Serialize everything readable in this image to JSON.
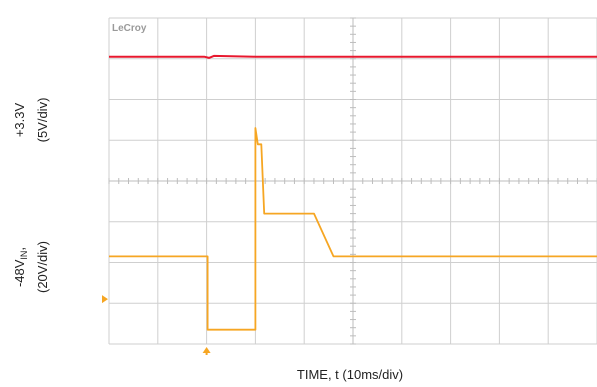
{
  "chart_data": {
    "type": "line",
    "instrument_logo": "LeCroy",
    "xlabel": "TIME, t (10ms/div)",
    "ylabels": {
      "top": [
        "+3.3V",
        "(5V/div)"
      ],
      "bottom_main": "-48V",
      "bottom_sub": "IN",
      "bottom_comma": ",",
      "bottom_scale": "(20V/div)"
    },
    "grid": true,
    "divisions": {
      "x": 10,
      "y": 8
    },
    "xlim": [
      0,
      10
    ],
    "ylim": [
      0,
      8
    ],
    "series": [
      {
        "color": "#e8182e",
        "x": [
          0,
          1.95,
          2.05,
          2.15,
          3.0,
          10
        ],
        "y": [
          7.05,
          7.05,
          7.02,
          7.07,
          7.05,
          7.05
        ]
      },
      {
        "color": "#f6a623",
        "x": [
          0,
          2.02,
          2.02,
          3.0,
          3.0,
          3.05,
          3.12,
          3.18,
          4.2,
          4.6,
          5.0,
          10
        ],
        "y": [
          2.15,
          2.15,
          0.35,
          0.35,
          5.3,
          4.9,
          4.9,
          3.2,
          3.2,
          2.15,
          2.15,
          2.15
        ]
      }
    ],
    "markers": {
      "trigger_color": "#f6a623",
      "level_color": "#f6a623",
      "trigger_x": 2.0,
      "level_y": 1.1
    }
  }
}
